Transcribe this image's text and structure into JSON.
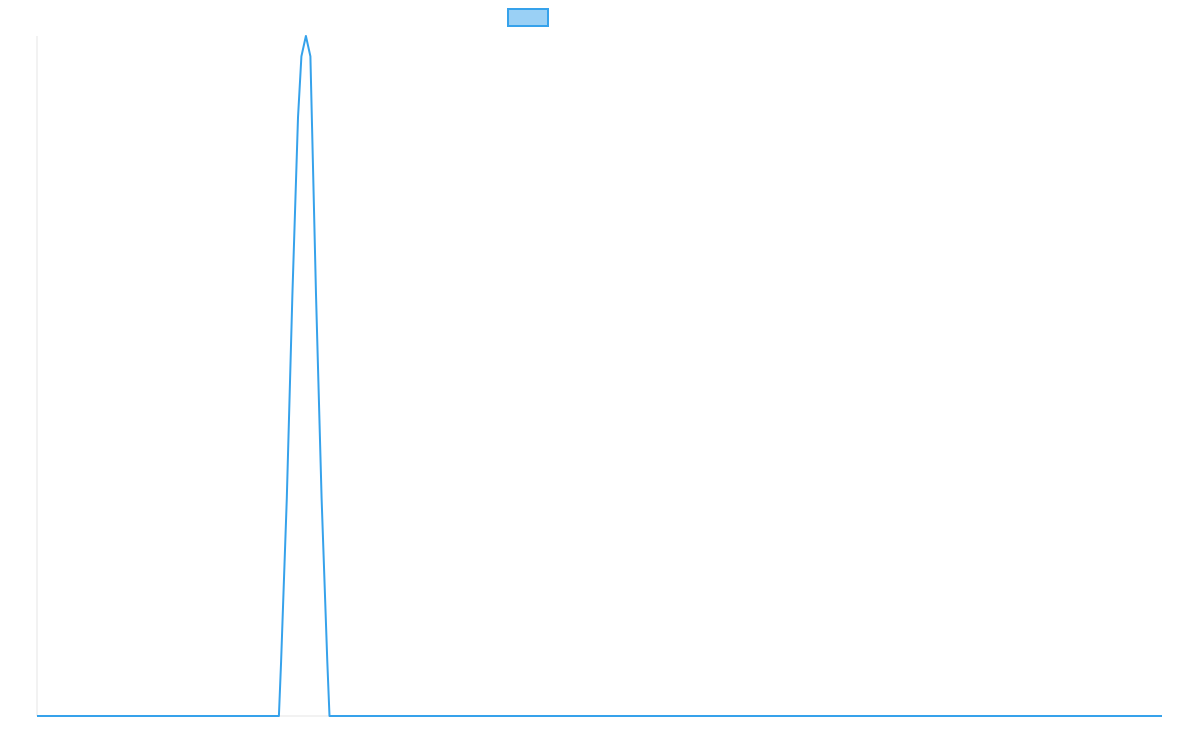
{
  "colors": {
    "series_line": "#36a2eb",
    "legend_fill": "#9ad0f5",
    "axis_line": "#e5e5e5"
  },
  "chart_data": {
    "type": "line",
    "title": "",
    "xlabel": "",
    "ylabel": "",
    "legend": {
      "position": "top-center",
      "entries": [
        {
          "label": ""
        }
      ]
    },
    "grid": false,
    "tick_labels_visible": false,
    "xlim": [
      0,
      1
    ],
    "ylim": [
      0,
      1
    ],
    "series": [
      {
        "x": [
          0,
          0.215,
          0.217,
          0.222,
          0.227,
          0.232,
          0.235,
          0.239,
          0.243,
          0.248,
          0.253,
          0.258,
          0.26,
          1.0
        ],
        "y": [
          0,
          0,
          0.08,
          0.32,
          0.62,
          0.88,
          0.97,
          1.0,
          0.97,
          0.62,
          0.32,
          0.08,
          0,
          0
        ]
      }
    ]
  }
}
